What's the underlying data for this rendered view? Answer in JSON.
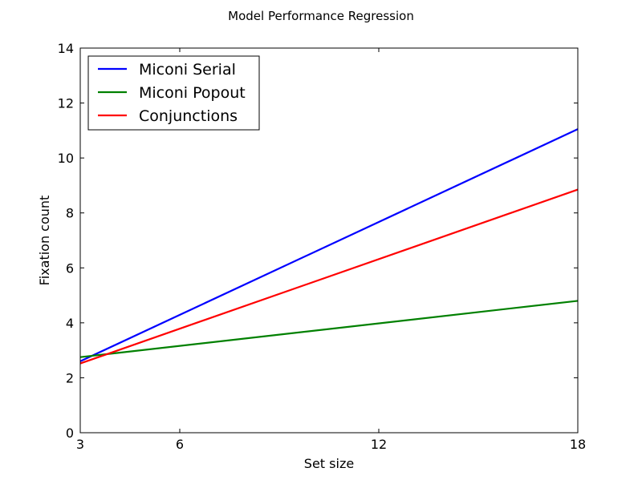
{
  "chart_data": {
    "type": "line",
    "title": "Model Performance Regression",
    "xlabel": "Set size",
    "ylabel": "Fixation count",
    "xlim": [
      3,
      18
    ],
    "ylim": [
      0,
      14
    ],
    "xticks": [
      3,
      6,
      12,
      18
    ],
    "yticks": [
      0,
      2,
      4,
      6,
      8,
      10,
      12,
      14
    ],
    "grid": false,
    "legend_position": "top-left",
    "series": [
      {
        "name": "Miconi Serial",
        "color": "#0000ff",
        "x": [
          3,
          18
        ],
        "y": [
          2.6,
          11.05
        ]
      },
      {
        "name": "Miconi Popout",
        "color": "#008000",
        "x": [
          3,
          18
        ],
        "y": [
          2.75,
          4.8
        ]
      },
      {
        "name": "Conjunctions",
        "color": "#ff0000",
        "x": [
          3,
          18
        ],
        "y": [
          2.52,
          8.85
        ]
      }
    ]
  }
}
